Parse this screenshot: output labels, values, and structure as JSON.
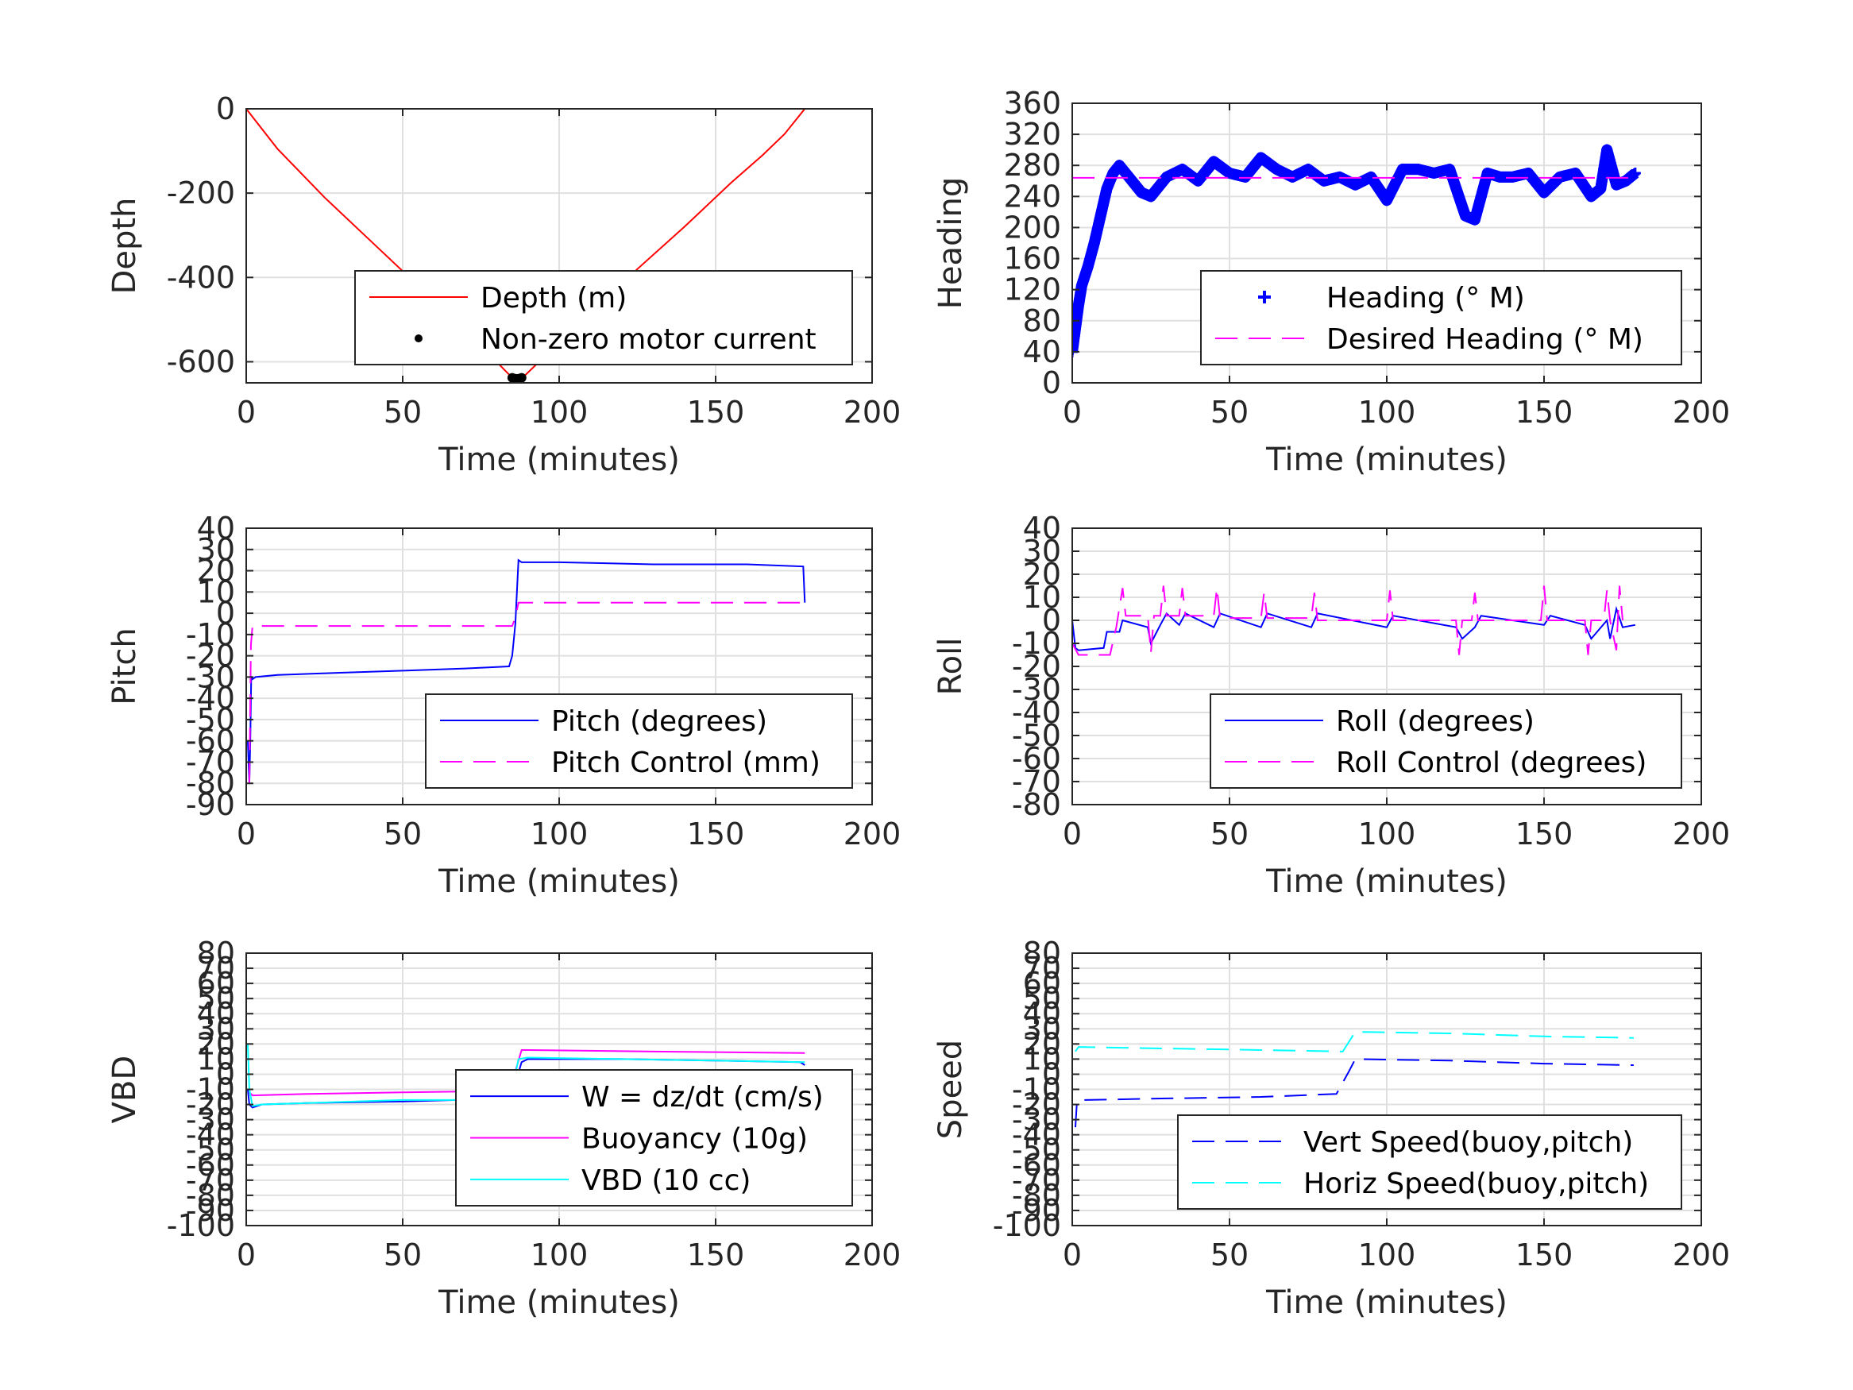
{
  "chart_data": [
    {
      "id": "depth",
      "type": "line",
      "xlabel": "Time (minutes)",
      "ylabel": "Depth",
      "xlim": [
        0,
        200
      ],
      "ylim": [
        -650,
        0
      ],
      "xticks": [
        0,
        50,
        100,
        150,
        200
      ],
      "yticks": [
        -600,
        -400,
        -200,
        0
      ],
      "legend_position": "bottom-right",
      "series": [
        {
          "name": "Depth (m)",
          "color": "#ff0000",
          "style": "solid",
          "x": [
            0,
            10,
            25,
            40,
            55,
            70,
            80,
            85,
            88,
            95,
            110,
            125,
            140,
            155,
            165,
            172,
            178.5
          ],
          "y": [
            0,
            -95,
            -210,
            -315,
            -420,
            -525,
            -600,
            -638,
            -640,
            -590,
            -485,
            -380,
            -280,
            -175,
            -110,
            -60,
            0
          ]
        },
        {
          "name": "Non-zero motor current",
          "color": "#000000",
          "style": "marker-dot",
          "x": [
            85,
            86,
            87,
            88
          ],
          "y": [
            -638,
            -640,
            -640,
            -638
          ]
        }
      ]
    },
    {
      "id": "heading",
      "type": "line",
      "xlabel": "Time (minutes)",
      "ylabel": "Heading",
      "xlim": [
        0,
        200
      ],
      "ylim": [
        0,
        360
      ],
      "xticks": [
        0,
        50,
        100,
        150,
        200
      ],
      "yticks": [
        0,
        40,
        80,
        120,
        160,
        200,
        240,
        280,
        320,
        360
      ],
      "legend_position": "bottom-right",
      "series": [
        {
          "name": "Heading (° M)",
          "color": "#0000ff",
          "style": "marker-plus",
          "x": [
            0,
            1,
            2,
            3,
            5,
            7,
            9,
            11,
            13,
            15,
            18,
            22,
            25,
            30,
            35,
            40,
            45,
            50,
            55,
            60,
            65,
            70,
            75,
            80,
            85,
            90,
            95,
            100,
            105,
            110,
            115,
            120,
            125,
            128,
            132,
            136,
            140,
            145,
            150,
            155,
            160,
            165,
            168,
            170,
            173,
            176,
            179
          ],
          "y": [
            40,
            70,
            100,
            125,
            150,
            180,
            215,
            250,
            270,
            280,
            265,
            245,
            240,
            265,
            275,
            260,
            285,
            270,
            265,
            290,
            275,
            265,
            275,
            260,
            265,
            255,
            265,
            235,
            275,
            275,
            270,
            275,
            215,
            210,
            270,
            265,
            265,
            270,
            245,
            265,
            270,
            240,
            250,
            300,
            255,
            260,
            270
          ]
        },
        {
          "name": "Desired Heading (° M)",
          "color": "#ff00ff",
          "style": "dashed",
          "x": [
            0,
            180
          ],
          "y": [
            264,
            264
          ]
        }
      ]
    },
    {
      "id": "pitch",
      "type": "line",
      "xlabel": "Time (minutes)",
      "ylabel": "Pitch",
      "xlim": [
        0,
        200
      ],
      "ylim": [
        -90,
        40
      ],
      "xticks": [
        0,
        50,
        100,
        150,
        200
      ],
      "yticks": [
        -90,
        -80,
        -70,
        -60,
        -50,
        -40,
        -30,
        -20,
        -10,
        0,
        10,
        20,
        30,
        40
      ],
      "legend_position": "bottom-right",
      "series": [
        {
          "name": "Pitch (degrees)",
          "color": "#0000ff",
          "style": "solid",
          "x": [
            0.5,
            1,
            1.3,
            1.6,
            2,
            3,
            10,
            30,
            50,
            70,
            84,
            85,
            86,
            87,
            88,
            100,
            130,
            160,
            178,
            178.5
          ],
          "y": [
            -60,
            -80,
            -60,
            -30,
            -31,
            -30,
            -29,
            -28,
            -27,
            -26,
            -25,
            -20,
            -5,
            25,
            24,
            24,
            23,
            23,
            22,
            5
          ]
        },
        {
          "name": "Pitch Control (mm)",
          "color": "#ff00ff",
          "style": "dashed",
          "x": [
            1,
            1.5,
            2,
            85,
            86,
            87,
            88,
            178.5
          ],
          "y": [
            -80,
            -15,
            -6,
            -6,
            -2,
            5,
            5,
            5
          ]
        }
      ]
    },
    {
      "id": "roll",
      "type": "line",
      "xlabel": "Time (minutes)",
      "ylabel": "Roll",
      "xlim": [
        0,
        200
      ],
      "ylim": [
        -80,
        40
      ],
      "xticks": [
        0,
        50,
        100,
        150,
        200
      ],
      "yticks": [
        -80,
        -70,
        -60,
        -50,
        -40,
        -30,
        -20,
        -10,
        0,
        10,
        20,
        30,
        40
      ],
      "legend_position": "bottom-right",
      "series": [
        {
          "name": "Roll (degrees)",
          "color": "#0000ff",
          "style": "solid",
          "x": [
            0,
            1,
            2,
            10,
            11,
            15,
            16,
            24,
            25,
            28,
            30,
            34,
            36,
            45,
            47,
            60,
            62,
            76,
            78,
            100,
            102,
            122,
            124,
            128,
            130,
            150,
            152,
            163,
            165,
            170,
            171,
            173,
            175,
            179
          ],
          "y": [
            0,
            -12,
            -13,
            -12,
            -5,
            -5,
            0,
            -3,
            -10,
            -2,
            3,
            -2,
            3,
            -3,
            3,
            -3,
            3,
            -3,
            3,
            -3,
            2,
            -3,
            -8,
            -3,
            2,
            -2,
            2,
            -2,
            -8,
            0,
            -8,
            5,
            -3,
            -2
          ]
        },
        {
          "name": "Roll Control (degrees)",
          "color": "#ff00ff",
          "style": "dashed",
          "x": [
            0,
            2,
            12,
            14,
            16,
            17,
            24,
            25,
            26,
            28,
            29,
            30,
            34,
            35,
            36,
            45,
            46,
            47,
            60,
            61,
            62,
            76,
            77,
            78,
            100,
            101,
            102,
            122,
            123,
            124,
            127,
            128,
            129,
            149,
            150,
            151,
            163,
            164,
            165,
            169,
            170,
            171,
            173,
            174,
            175
          ],
          "y": [
            -10,
            -15,
            -15,
            -3,
            14,
            2,
            2,
            -14,
            2,
            2,
            15,
            2,
            2,
            14,
            2,
            2,
            14,
            1,
            1,
            12,
            1,
            1,
            12,
            0,
            0,
            13,
            0,
            0,
            -15,
            0,
            0,
            12,
            0,
            0,
            15,
            0,
            0,
            -15,
            0,
            0,
            13,
            0,
            -13,
            15,
            0
          ]
        }
      ]
    },
    {
      "id": "vbd",
      "type": "line",
      "xlabel": "Time (minutes)",
      "ylabel": "VBD",
      "xlim": [
        0,
        200
      ],
      "ylim": [
        -100,
        80
      ],
      "xticks": [
        0,
        50,
        100,
        150,
        200
      ],
      "yticks": [
        -100,
        -90,
        -80,
        -70,
        -60,
        -50,
        -40,
        -30,
        -20,
        -10,
        0,
        10,
        20,
        30,
        40,
        50,
        60,
        70,
        80
      ],
      "legend_position": "bottom-right",
      "series": [
        {
          "name": "W = dz/dt (cm/s)",
          "color": "#0000ff",
          "style": "solid",
          "x": [
            0.5,
            1,
            2,
            5,
            20,
            50,
            85,
            86,
            88,
            90,
            120,
            150,
            177,
            178.5
          ],
          "y": [
            -10,
            -20,
            -22,
            -20,
            -19,
            -18,
            -16,
            -6,
            8,
            10,
            10,
            9,
            8,
            6
          ]
        },
        {
          "name": "Buoyancy (10g)",
          "color": "#ff00ff",
          "style": "solid",
          "x": [
            1,
            2,
            20,
            50,
            84,
            86,
            88,
            90,
            130,
            178.5
          ],
          "y": [
            -12,
            -14,
            -13,
            -12,
            -11,
            2,
            16,
            16,
            15,
            14
          ]
        },
        {
          "name": "VBD (10 cc)",
          "color": "#00ffff",
          "style": "solid",
          "x": [
            0.5,
            1,
            2,
            5,
            20,
            50,
            84,
            85,
            87,
            90,
            120,
            150,
            178.5
          ],
          "y": [
            20,
            -10,
            -21,
            -20,
            -19,
            -17,
            -17,
            -10,
            10,
            11,
            10,
            9,
            8
          ]
        }
      ]
    },
    {
      "id": "speed",
      "type": "line",
      "xlabel": "Time (minutes)",
      "ylabel": "Speed",
      "xlim": [
        0,
        200
      ],
      "ylim": [
        -100,
        80
      ],
      "xticks": [
        0,
        50,
        100,
        150,
        200
      ],
      "yticks": [
        -100,
        -90,
        -80,
        -70,
        -60,
        -50,
        -40,
        -30,
        -20,
        -10,
        0,
        10,
        20,
        30,
        40,
        50,
        60,
        70,
        80
      ],
      "legend_position": "bottom-right",
      "series": [
        {
          "name": "Vert Speed(buoy,pitch)",
          "color": "#0000ff",
          "style": "dashed",
          "x": [
            1,
            1.5,
            4,
            30,
            60,
            84,
            88,
            90,
            120,
            150,
            178.5
          ],
          "y": [
            -35,
            -18,
            -17,
            -16,
            -15,
            -13,
            2,
            10,
            9,
            7,
            6
          ]
        },
        {
          "name": "Horiz Speed(buoy,pitch)",
          "color": "#00ffff",
          "style": "dashed",
          "x": [
            1,
            2,
            30,
            60,
            86,
            90,
            120,
            150,
            178.5
          ],
          "y": [
            15,
            18,
            17,
            16,
            15,
            28,
            27,
            25,
            24
          ]
        }
      ]
    }
  ]
}
